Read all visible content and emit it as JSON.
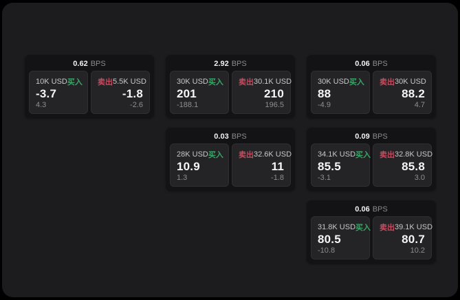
{
  "page": {
    "background": "#000000",
    "surface": "#1c1c1e",
    "card_bg": "#131315",
    "panel_bg": "#242427"
  },
  "colors": {
    "buy_green": "#3aa567",
    "sell_red": "#c74b5e",
    "value_white": "#f5f5f7",
    "muted_gray": "#8e8e93"
  },
  "labels": {
    "bps_unit": "BPS",
    "buy_badge": "买入",
    "sell_badge": "卖出"
  },
  "cards": [
    {
      "row": 1,
      "col": 1,
      "bps_value": "0.62",
      "bps_unit": "BPS",
      "buy": {
        "amount": "10K USD",
        "badge": "买入",
        "main": "-3.7",
        "sub": "4.3"
      },
      "sell": {
        "badge": "卖出",
        "amount": "5.5K USD",
        "main": "-1.8",
        "sub": "-2.6"
      }
    },
    {
      "row": 1,
      "col": 2,
      "bps_value": "2.92",
      "bps_unit": "BPS",
      "buy": {
        "amount": "30K USD",
        "badge": "买入",
        "main": "201",
        "sub": "-188.1"
      },
      "sell": {
        "badge": "卖出",
        "amount": "30.1K USD",
        "main": "210",
        "sub": "196.5"
      }
    },
    {
      "row": 1,
      "col": 3,
      "bps_value": "0.06",
      "bps_unit": "BPS",
      "buy": {
        "amount": "30K USD",
        "badge": "买入",
        "main": "88",
        "sub": "-4.9"
      },
      "sell": {
        "badge": "卖出",
        "amount": "30K USD",
        "main": "88.2",
        "sub": "4.7"
      }
    },
    {
      "row": 2,
      "col": 2,
      "bps_value": "0.03",
      "bps_unit": "BPS",
      "buy": {
        "amount": "28K USD",
        "badge": "买入",
        "main": "10.9",
        "sub": "1.3"
      },
      "sell": {
        "badge": "卖出",
        "amount": "32.6K USD",
        "main": "11",
        "sub": "-1.8"
      }
    },
    {
      "row": 2,
      "col": 3,
      "bps_value": "0.09",
      "bps_unit": "BPS",
      "buy": {
        "amount": "34.1K USD",
        "badge": "买入",
        "main": "85.5",
        "sub": "-3.1"
      },
      "sell": {
        "badge": "卖出",
        "amount": "32.8K USD",
        "main": "85.8",
        "sub": "3.0"
      }
    },
    {
      "row": 3,
      "col": 3,
      "bps_value": "0.06",
      "bps_unit": "BPS",
      "buy": {
        "amount": "31.8K USD",
        "badge": "买入",
        "main": "80.5",
        "sub": "-10.8"
      },
      "sell": {
        "badge": "卖出",
        "amount": "39.1K USD",
        "main": "80.7",
        "sub": "10.2"
      }
    }
  ]
}
